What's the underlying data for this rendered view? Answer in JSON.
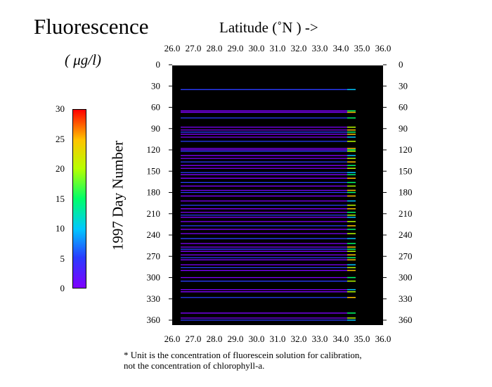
{
  "title": "Fluorescence",
  "unit": "( μg/l)",
  "x_axis_label": "Latitude  (˚N )  ->",
  "y_axis_label": "1997   Day  Number",
  "footnote": [
    "* Unit is the concentration of fluorescein solution for calibration,",
    "not the concentration of chlorophyll-a."
  ],
  "colorbar": {
    "min": 0,
    "max": 30,
    "ticks": [
      "0",
      "5",
      "10",
      "15",
      "20",
      "25",
      "30"
    ],
    "colors": [
      "#7f00ff",
      "#2a3cff",
      "#00c8ff",
      "#00ff6a",
      "#b7ff00",
      "#ffc400",
      "#ff0000"
    ]
  },
  "chart_data": {
    "type": "heatmap",
    "title": "Fluorescence",
    "xlabel": "Latitude  (˚N )  ->",
    "ylabel": "1997   Day  Number",
    "x_ticks": [
      "26.0",
      "27.0",
      "28.0",
      "29.0",
      "30.0",
      "31.0",
      "32.0",
      "33.0",
      "34.0",
      "35.0",
      "36.0"
    ],
    "y_ticks": [
      "0",
      "30",
      "60",
      "90",
      "120",
      "150",
      "180",
      "210",
      "240",
      "270",
      "300",
      "330",
      "360"
    ],
    "xlim": [
      26.0,
      36.0
    ],
    "ylim": [
      0,
      360
    ],
    "value_range": [
      0,
      30
    ],
    "background_color": "#000000",
    "x_coverage": [
      26.4,
      34.8
    ],
    "transect_days": [
      35,
      65,
      67,
      75,
      88,
      92,
      95,
      98,
      102,
      108,
      118,
      120,
      122,
      128,
      132,
      137,
      142,
      146,
      152,
      155,
      160,
      166,
      171,
      177,
      180,
      185,
      192,
      198,
      203,
      208,
      212,
      215,
      221,
      227,
      232,
      238,
      245,
      252,
      257,
      260,
      263,
      268,
      272,
      275,
      282,
      286,
      290,
      300,
      305,
      317,
      320,
      328,
      350,
      357,
      360
    ],
    "typical_value": 2,
    "high_value_latitude": [
      34.3,
      34.7
    ],
    "high_value_range": [
      10,
      28
    ]
  }
}
